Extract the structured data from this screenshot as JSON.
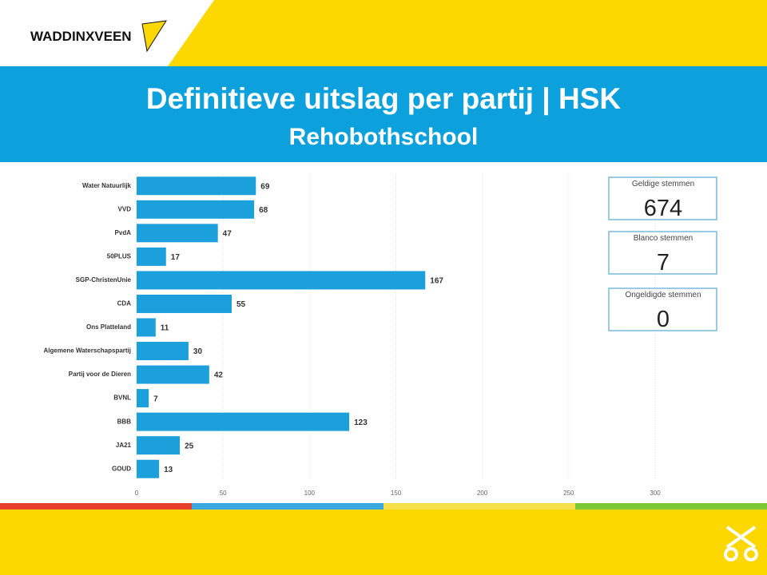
{
  "header": {
    "logo": "WADDINXVEEN"
  },
  "chart_data": {
    "type": "bar",
    "orientation": "horizontal",
    "title": "Definitieve uitslag per partij | HSK",
    "subtitle": "Rehobothschool",
    "categories": [
      "Water Natuurlijk",
      "VVD",
      "PvdA",
      "50PLUS",
      "SGP-ChristenUnie",
      "CDA",
      "Ons Platteland",
      "Algemene Waterschapspartij",
      "Partij voor de Dieren",
      "BVNL",
      "BBB",
      "JA21",
      "GOUD"
    ],
    "values": [
      69,
      68,
      47,
      17,
      167,
      55,
      11,
      30,
      42,
      7,
      123,
      25,
      13
    ],
    "color": "#1ca0dc",
    "xlim": [
      0,
      300
    ],
    "xticks": [
      0,
      50,
      100,
      150,
      200,
      250,
      300
    ],
    "grid": true
  },
  "stats": [
    {
      "label": "Geldige stemmen",
      "value": 674
    },
    {
      "label": "Blanco stemmen",
      "value": 7
    },
    {
      "label": "Ongeldigde stemmen",
      "value": 0
    }
  ]
}
